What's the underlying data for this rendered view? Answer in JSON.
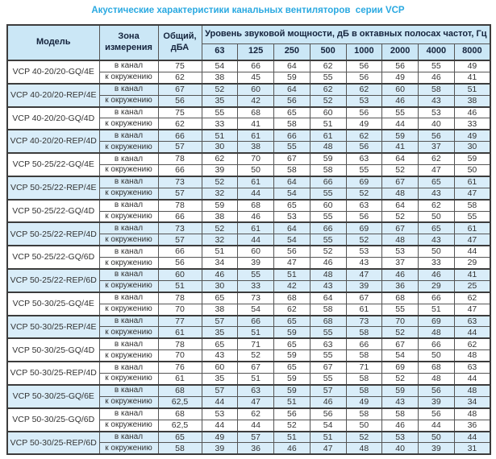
{
  "title": "Акустические характеристики канальных вентиляторов  серии VCP",
  "colors": {
    "title": "#2aa9e1",
    "header_bg": "#cbe7f6",
    "shaded_row_bg": "#d9edf9",
    "border_dark": "#3c3c3c",
    "header_text": "#14233c",
    "body_text": "#333333"
  },
  "table": {
    "headers": {
      "model": "Модель",
      "zone": "Зона\nизмерения",
      "total": "Общий,\nдБА",
      "spl_group": "Уровень звуковой мощности, дБ в октавных полосах частот, Гц",
      "frequencies": [
        "63",
        "125",
        "250",
        "500",
        "1000",
        "2000",
        "4000",
        "8000"
      ]
    },
    "groups": [
      {
        "model": "VCP 40-20/20-GQ/4E",
        "shaded": false,
        "rows": [
          {
            "zone": "в канал",
            "total": "75",
            "values": [
              54,
              66,
              64,
              62,
              56,
              56,
              55,
              49
            ]
          },
          {
            "zone": "к окружению",
            "total": "62",
            "values": [
              38,
              45,
              59,
              55,
              56,
              49,
              46,
              41
            ]
          }
        ]
      },
      {
        "model": "VCP 40-20/20-REP/4E",
        "shaded": true,
        "rows": [
          {
            "zone": "в канал",
            "total": "67",
            "values": [
              52,
              60,
              64,
              62,
              62,
              60,
              58,
              51
            ]
          },
          {
            "zone": "к окружению",
            "total": "56",
            "values": [
              35,
              42,
              56,
              52,
              53,
              46,
              43,
              38
            ]
          }
        ]
      },
      {
        "model": "VCP 40-20/20-GQ/4D",
        "shaded": false,
        "rows": [
          {
            "zone": "в канал",
            "total": "75",
            "values": [
              55,
              68,
              65,
              60,
              56,
              55,
              53,
              46
            ]
          },
          {
            "zone": "к окружению",
            "total": "62",
            "values": [
              33,
              41,
              58,
              51,
              49,
              44,
              40,
              33
            ]
          }
        ]
      },
      {
        "model": "VCP 40-20/20-REP/4D",
        "shaded": true,
        "rows": [
          {
            "zone": "в канал",
            "total": "66",
            "values": [
              51,
              61,
              66,
              61,
              62,
              59,
              56,
              49
            ]
          },
          {
            "zone": "к окружению",
            "total": "57",
            "values": [
              30,
              38,
              55,
              48,
              56,
              41,
              37,
              30
            ]
          }
        ]
      },
      {
        "model": "VCP 50-25/22-GQ/4E",
        "shaded": false,
        "rows": [
          {
            "zone": "в канал",
            "total": "78",
            "values": [
              62,
              70,
              67,
              59,
              63,
              64,
              62,
              59
            ]
          },
          {
            "zone": "к окружению",
            "total": "66",
            "values": [
              39,
              50,
              58,
              58,
              55,
              52,
              47,
              50
            ]
          }
        ]
      },
      {
        "model": "VCP 50-25/22-REP/4E",
        "shaded": true,
        "rows": [
          {
            "zone": "в канал",
            "total": "73",
            "values": [
              52,
              61,
              64,
              66,
              69,
              67,
              65,
              61
            ]
          },
          {
            "zone": "к окружению",
            "total": "57",
            "values": [
              32,
              44,
              54,
              55,
              52,
              48,
              43,
              47
            ]
          }
        ]
      },
      {
        "model": "VCP 50-25/22-GQ/4D",
        "shaded": false,
        "rows": [
          {
            "zone": "в канал",
            "total": "78",
            "values": [
              59,
              68,
              65,
              60,
              63,
              64,
              62,
              58
            ]
          },
          {
            "zone": "к окружению",
            "total": "66",
            "values": [
              38,
              46,
              53,
              55,
              56,
              52,
              50,
              55
            ]
          }
        ]
      },
      {
        "model": "VCP 50-25/22-REP/4D",
        "shaded": true,
        "rows": [
          {
            "zone": "в канал",
            "total": "73",
            "values": [
              52,
              61,
              64,
              66,
              69,
              67,
              65,
              61
            ]
          },
          {
            "zone": "к окружению",
            "total": "57",
            "values": [
              32,
              44,
              54,
              55,
              52,
              48,
              43,
              47
            ]
          }
        ]
      },
      {
        "model": "VCP 50-25/22-GQ/6D",
        "shaded": false,
        "rows": [
          {
            "zone": "в канал",
            "total": "66",
            "values": [
              51,
              60,
              56,
              52,
              53,
              53,
              50,
              44
            ]
          },
          {
            "zone": "к окружению",
            "total": "56",
            "values": [
              34,
              39,
              47,
              46,
              43,
              37,
              33,
              29
            ]
          }
        ]
      },
      {
        "model": "VCP 50-25/22-REP/6D",
        "shaded": true,
        "rows": [
          {
            "zone": "в канал",
            "total": "60",
            "values": [
              46,
              55,
              51,
              48,
              47,
              46,
              46,
              41
            ]
          },
          {
            "zone": "к окружению",
            "total": "51",
            "values": [
              30,
              33,
              42,
              43,
              39,
              36,
              29,
              25
            ]
          }
        ]
      },
      {
        "model": "VCP 50-30/25-GQ/4E",
        "shaded": false,
        "rows": [
          {
            "zone": "в канал",
            "total": "78",
            "values": [
              65,
              73,
              68,
              64,
              67,
              68,
              66,
              62
            ]
          },
          {
            "zone": "к окружению",
            "total": "70",
            "values": [
              38,
              54,
              62,
              58,
              61,
              55,
              51,
              47
            ]
          }
        ]
      },
      {
        "model": "VCP 50-30/25-REP/4E",
        "shaded": true,
        "rows": [
          {
            "zone": "в канал",
            "total": "77",
            "values": [
              57,
              66,
              65,
              68,
              73,
              70,
              69,
              63
            ]
          },
          {
            "zone": "к окружению",
            "total": "61",
            "values": [
              35,
              51,
              59,
              55,
              58,
              52,
              48,
              44
            ]
          }
        ]
      },
      {
        "model": "VCP 50-30/25-GQ/4D",
        "shaded": false,
        "rows": [
          {
            "zone": "в канал",
            "total": "78",
            "values": [
              65,
              71,
              65,
              63,
              66,
              67,
              66,
              62
            ]
          },
          {
            "zone": "к окружению",
            "total": "70",
            "values": [
              43,
              52,
              59,
              55,
              58,
              54,
              50,
              48
            ]
          }
        ]
      },
      {
        "model": "VCP 50-30/25-REP/4D",
        "shaded": false,
        "rows": [
          {
            "zone": "в канал",
            "total": "76",
            "values": [
              60,
              67,
              65,
              67,
              71,
              69,
              68,
              63
            ]
          },
          {
            "zone": "к окружению",
            "total": "61",
            "values": [
              35,
              51,
              59,
              55,
              58,
              52,
              48,
              44
            ]
          }
        ]
      },
      {
        "model": "VCP 50-30/25-GQ/6E",
        "shaded": true,
        "rows": [
          {
            "zone": "в канал",
            "total": "68",
            "values": [
              57,
              63,
              59,
              57,
              58,
              59,
              56,
              48
            ]
          },
          {
            "zone": "к окружению",
            "total": "62,5",
            "values": [
              44,
              47,
              51,
              46,
              49,
              43,
              39,
              34
            ]
          }
        ]
      },
      {
        "model": "VCP 50-30/25-GQ/6D",
        "shaded": false,
        "rows": [
          {
            "zone": "в канал",
            "total": "68",
            "values": [
              53,
              62,
              56,
              56,
              58,
              58,
              56,
              48
            ]
          },
          {
            "zone": "к окружению",
            "total": "62,5",
            "values": [
              44,
              44,
              52,
              54,
              50,
              46,
              44,
              36
            ]
          }
        ]
      },
      {
        "model": "VCP 50-30/25-REP/6D",
        "shaded": true,
        "rows": [
          {
            "zone": "в канал",
            "total": "65",
            "values": [
              49,
              57,
              51,
              51,
              52,
              53,
              50,
              44
            ]
          },
          {
            "zone": "к окружению",
            "total": "58",
            "values": [
              39,
              36,
              46,
              47,
              48,
              40,
              39,
              31
            ]
          }
        ]
      }
    ]
  }
}
